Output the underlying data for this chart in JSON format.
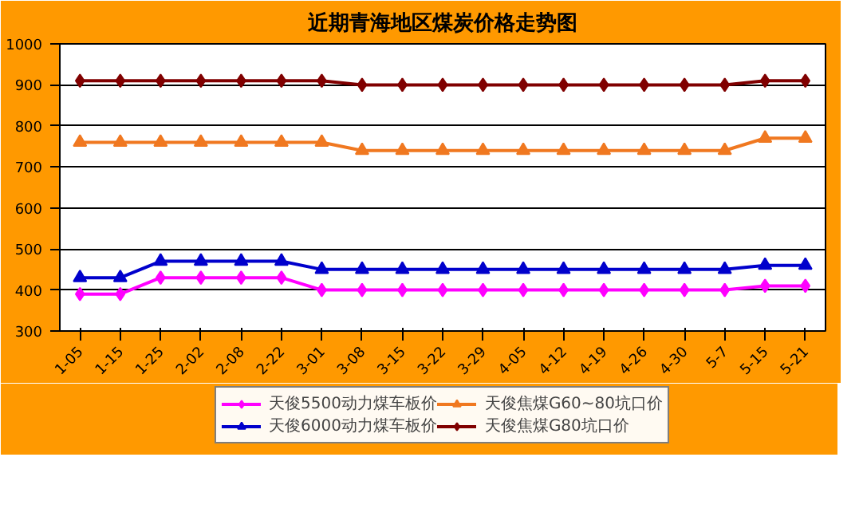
{
  "chart_data": {
    "type": "line",
    "title": "近期青海地区煤炭价格走势图",
    "categories": [
      "1-05",
      "1-15",
      "1-25",
      "2-02",
      "2-08",
      "2-22",
      "3-01",
      "3-08",
      "3-15",
      "3-22",
      "3-29",
      "4-05",
      "4-12",
      "4-19",
      "4-26",
      "4-30",
      "5-7",
      "5-15",
      "5-21"
    ],
    "series": [
      {
        "name": "天俊5500动力煤车板价",
        "color": "#ff00ff",
        "marker": "diamond",
        "values": [
          390,
          390,
          430,
          430,
          430,
          430,
          400,
          400,
          400,
          400,
          400,
          400,
          400,
          400,
          400,
          400,
          400,
          410,
          410
        ]
      },
      {
        "name": "天俊6000动力煤车板价",
        "color": "#0000cc",
        "marker": "triangle",
        "values": [
          430,
          430,
          470,
          470,
          470,
          470,
          450,
          450,
          450,
          450,
          450,
          450,
          450,
          450,
          450,
          450,
          450,
          460,
          460
        ]
      },
      {
        "name": "天俊焦煤G60~80坑口价",
        "color": "#f07820",
        "marker": "triangle",
        "values": [
          760,
          760,
          760,
          760,
          760,
          760,
          760,
          740,
          740,
          740,
          740,
          740,
          740,
          740,
          740,
          740,
          740,
          770,
          770
        ]
      },
      {
        "name": "天俊焦煤G80坑口价",
        "color": "#800000",
        "marker": "diamond",
        "values": [
          910,
          910,
          910,
          910,
          910,
          910,
          910,
          900,
          900,
          900,
          900,
          900,
          900,
          900,
          900,
          900,
          900,
          910,
          910
        ]
      }
    ],
    "ylim": [
      300,
      1000
    ],
    "yticks": [
      300,
      400,
      500,
      600,
      700,
      800,
      900,
      1000
    ],
    "grid": "y",
    "legend": "bottom",
    "line_style": "solid"
  }
}
